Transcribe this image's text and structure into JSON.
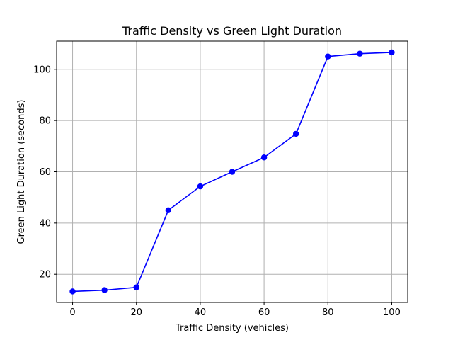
{
  "chart_data": {
    "type": "line",
    "title": "Traffic Density vs Green Light Duration",
    "xlabel": "Traffic Density (vehicles)",
    "ylabel": "Green Light Duration (seconds)",
    "xlim": [
      -5,
      105
    ],
    "ylim": [
      9,
      111
    ],
    "xticks": [
      0,
      20,
      40,
      60,
      80,
      100
    ],
    "yticks": [
      20,
      40,
      60,
      80,
      100
    ],
    "grid": true,
    "legend": "none",
    "series": [
      {
        "color": "#0000ff",
        "marker": "circle",
        "x": [
          0,
          10,
          20,
          30,
          40,
          50,
          60,
          70,
          80,
          90,
          100
        ],
        "y": [
          13.3,
          13.8,
          14.9,
          45.0,
          54.3,
          60.0,
          65.6,
          74.8,
          105.0,
          106.1,
          106.6
        ]
      }
    ]
  }
}
